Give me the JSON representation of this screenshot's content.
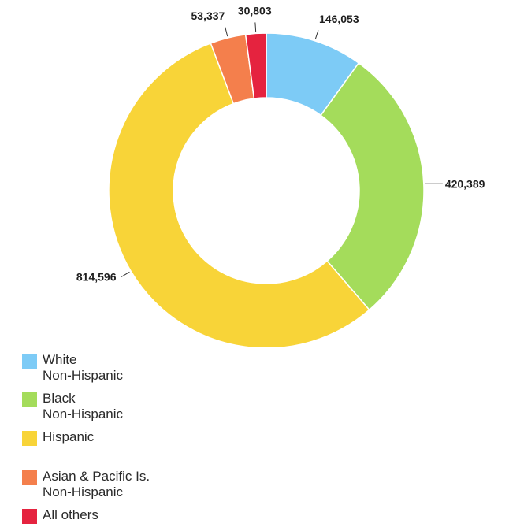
{
  "chart_data": {
    "type": "donut",
    "title": "",
    "categories": [
      "White Non-Hispanic",
      "Black Non-Hispanic",
      "Hispanic",
      "Asian & Pacific Is. Non-Hispanic",
      "All others"
    ],
    "values": [
      146053,
      420389,
      814596,
      53337,
      30803
    ],
    "value_labels": [
      "146,053",
      "420,389",
      "814,596",
      "53,337",
      "30,803"
    ],
    "colors": [
      "#7dcbf6",
      "#a4dc5b",
      "#f8d438",
      "#f47f4c",
      "#e5233f"
    ],
    "start_angle_deg": 0,
    "direction": "clockwise",
    "legend_position": "bottom-left"
  },
  "legend": [
    {
      "line1": "White",
      "line2": "Non-Hispanic",
      "color": "#7dcbf6"
    },
    {
      "line1": "Black",
      "line2": "Non-Hispanic",
      "color": "#a4dc5b"
    },
    {
      "line1": "Hispanic",
      "line2": "",
      "color": "#f8d438"
    },
    {
      "line1": "Asian & Pacific Is.",
      "line2": "Non-Hispanic",
      "color": "#f47f4c"
    },
    {
      "line1": "All others",
      "line2": "",
      "color": "#e5233f"
    }
  ]
}
